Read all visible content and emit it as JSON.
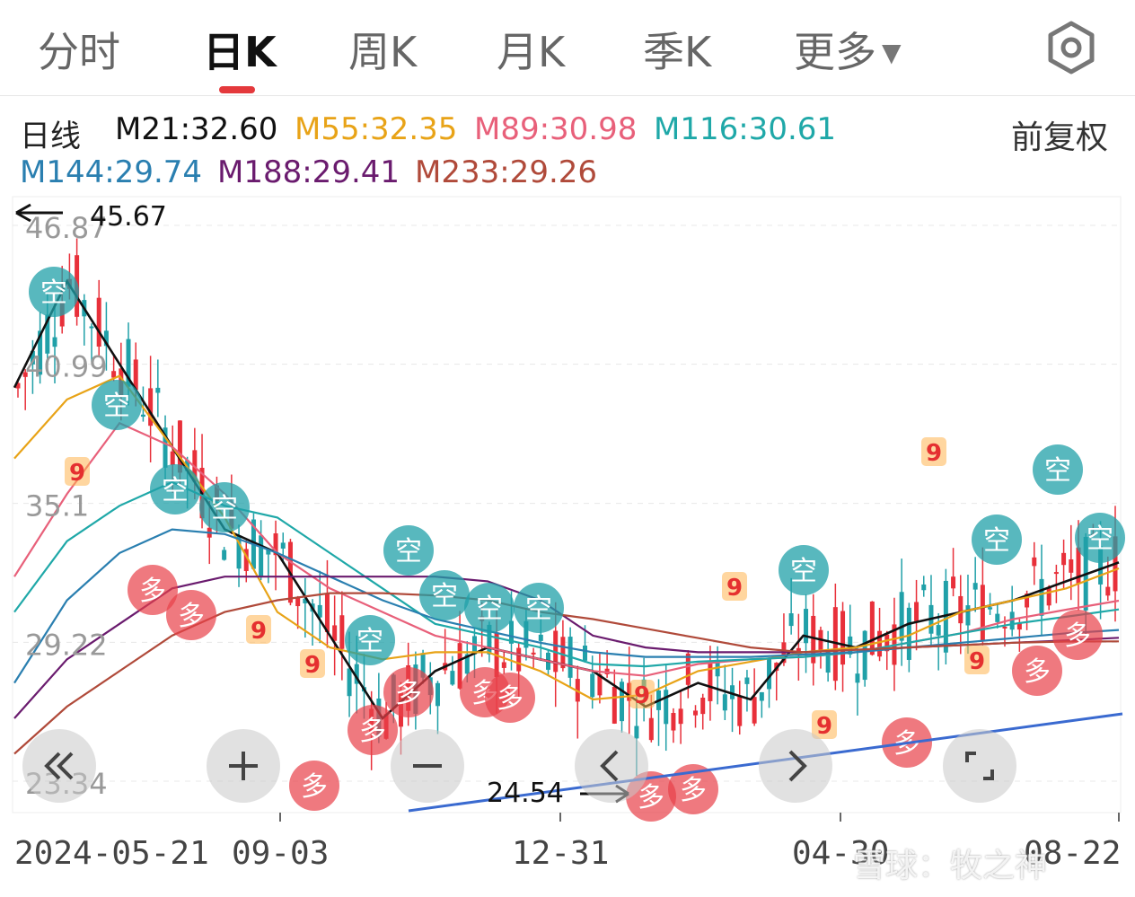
{
  "tabs": [
    {
      "label": "分时"
    },
    {
      "label": "日K"
    },
    {
      "label": "周K"
    },
    {
      "label": "月K"
    },
    {
      "label": "季K"
    },
    {
      "label": "更多"
    }
  ],
  "active_tab": "日K",
  "settings_icon": "gear-hexagon-icon",
  "ma_legend": {
    "period_label": "日线",
    "items": [
      {
        "label": "M21:32.60",
        "color": "#111111"
      },
      {
        "label": "M55:32.35",
        "color": "#e8a317"
      },
      {
        "label": "M89:30.98",
        "color": "#e8607a"
      },
      {
        "label": "M116:30.61",
        "color": "#1fa8a8"
      },
      {
        "label": "M144:29.74",
        "color": "#2a7fb0"
      },
      {
        "label": "M188:29.41",
        "color": "#6a1b6e"
      },
      {
        "label": "M233:29.26",
        "color": "#b04a3a"
      }
    ],
    "adjust_label": "前复权"
  },
  "price_axis": [
    "46.87",
    "40.99",
    "35.1",
    "29.22",
    "23.34"
  ],
  "max_marker": "45.67",
  "min_marker": "24.54",
  "date_axis": [
    "2024-05-21",
    "09-03",
    "12-31",
    "04-30",
    "08-22"
  ],
  "signal_labels": {
    "bear": "空",
    "bull": "多",
    "nine": "9"
  },
  "controls": [
    {
      "name": "rewind-button",
      "icon": "double-chevron-left-icon"
    },
    {
      "name": "zoom-in-button",
      "icon": "plus-icon"
    },
    {
      "name": "zoom-out-button",
      "icon": "minus-icon"
    },
    {
      "name": "pan-left-button",
      "icon": "chevron-left-icon"
    },
    {
      "name": "pan-right-button",
      "icon": "chevron-right-icon"
    },
    {
      "name": "fullscreen-button",
      "icon": "expand-corners-icon"
    }
  ],
  "watermark": "雪球：牧之神",
  "colors": {
    "up": "#e8303a",
    "down": "#20a0a8",
    "tab_accent": "#e4393c",
    "trendline": "#3a6ad0"
  },
  "chart_data": {
    "type": "line",
    "description_series": [
      {
        "name": "M21",
        "values": [
          40.0,
          44.5,
          41.0,
          37.5,
          34.0,
          33.0,
          29.5,
          26.0,
          28.0,
          29.0,
          28.5,
          28.0,
          26.5,
          27.5,
          26.8,
          29.5,
          29.0,
          30.0,
          30.5,
          31.0,
          31.8,
          32.6
        ]
      },
      {
        "name": "M55",
        "values": [
          37.0,
          39.5,
          40.5,
          37.5,
          34.5,
          30.5,
          29.0,
          28.5,
          28.8,
          28.8,
          28.0,
          26.8,
          27.0,
          28.0,
          28.4,
          28.8,
          29.0,
          29.5,
          30.5,
          31.0,
          31.5,
          32.35
        ]
      },
      {
        "name": "M89",
        "values": [
          32.0,
          35.5,
          38.5,
          37.5,
          35.5,
          33.0,
          31.5,
          30.5,
          29.5,
          29.0,
          28.5,
          28.0,
          27.8,
          28.3,
          28.5,
          28.6,
          28.8,
          29.2,
          29.6,
          30.2,
          30.6,
          30.98
        ]
      },
      {
        "name": "M116",
        "values": [
          30.5,
          33.5,
          35.0,
          36.0,
          35.0,
          34.5,
          33.0,
          31.5,
          30.0,
          29.5,
          29.0,
          28.3,
          28.2,
          28.4,
          28.5,
          28.6,
          28.8,
          29.2,
          29.6,
          30.0,
          30.3,
          30.61
        ]
      },
      {
        "name": "M144",
        "values": [
          27.5,
          31.0,
          33.0,
          34.0,
          33.8,
          33.0,
          32.0,
          31.0,
          30.2,
          29.7,
          29.2,
          28.8,
          28.6,
          28.6,
          28.6,
          28.7,
          28.8,
          29.0,
          29.2,
          29.4,
          29.6,
          29.74
        ]
      },
      {
        "name": "M188",
        "values": [
          26.0,
          28.5,
          30.0,
          31.5,
          32.0,
          32.0,
          32.0,
          32.0,
          32.0,
          31.8,
          31.0,
          29.5,
          29.0,
          28.8,
          28.8,
          28.8,
          28.9,
          29.0,
          29.1,
          29.2,
          29.3,
          29.41
        ]
      },
      {
        "name": "M233",
        "values": [
          24.5,
          26.5,
          28.0,
          29.5,
          30.5,
          31.0,
          31.3,
          31.3,
          31.2,
          31.0,
          30.5,
          30.2,
          29.8,
          29.4,
          29.0,
          28.8,
          28.9,
          29.0,
          29.1,
          29.2,
          29.25,
          29.26
        ]
      }
    ],
    "ylim": [
      23.34,
      46.87
    ],
    "yticks": [
      46.87,
      40.99,
      35.1,
      29.22,
      23.34
    ],
    "xlabels": [
      "2024-05-21",
      "09-03",
      "12-31",
      "04-30",
      "08-22"
    ],
    "annotations": [
      "45.67",
      "24.54"
    ]
  }
}
